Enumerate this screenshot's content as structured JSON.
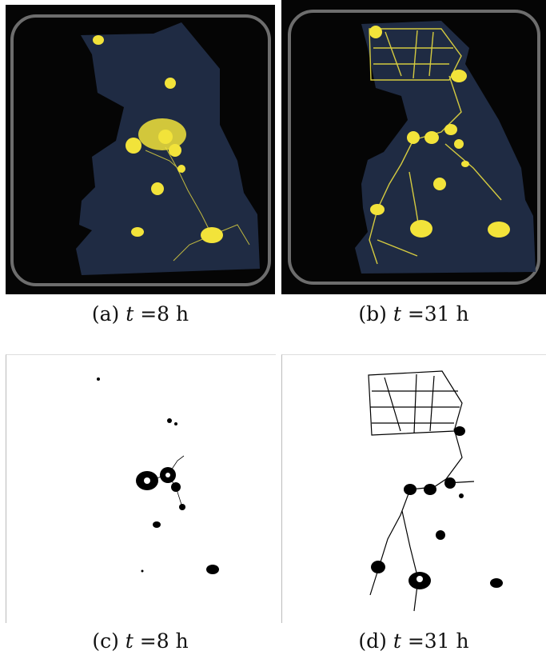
{
  "figure": {
    "panels": [
      {
        "id": "a",
        "caption_prefix": "(a)",
        "caption_var": "t",
        "caption_value": "=8 h",
        "kind": "photograph"
      },
      {
        "id": "b",
        "caption_prefix": "(b)",
        "caption_var": "t",
        "caption_value": "=31 h",
        "kind": "photograph"
      },
      {
        "id": "c",
        "caption_prefix": "(c)",
        "caption_var": "t",
        "caption_value": "=8 h",
        "kind": "binarized"
      },
      {
        "id": "d",
        "caption_prefix": "(d)",
        "caption_var": "t",
        "caption_value": "=31 h",
        "kind": "binarized"
      }
    ],
    "colors": {
      "dish_background": "#050505",
      "map_region": "#22304a",
      "organism": "#f2e33a",
      "food_source": "#fbf08a",
      "binary_fg": "#000000",
      "binary_bg": "#ffffff"
    }
  }
}
